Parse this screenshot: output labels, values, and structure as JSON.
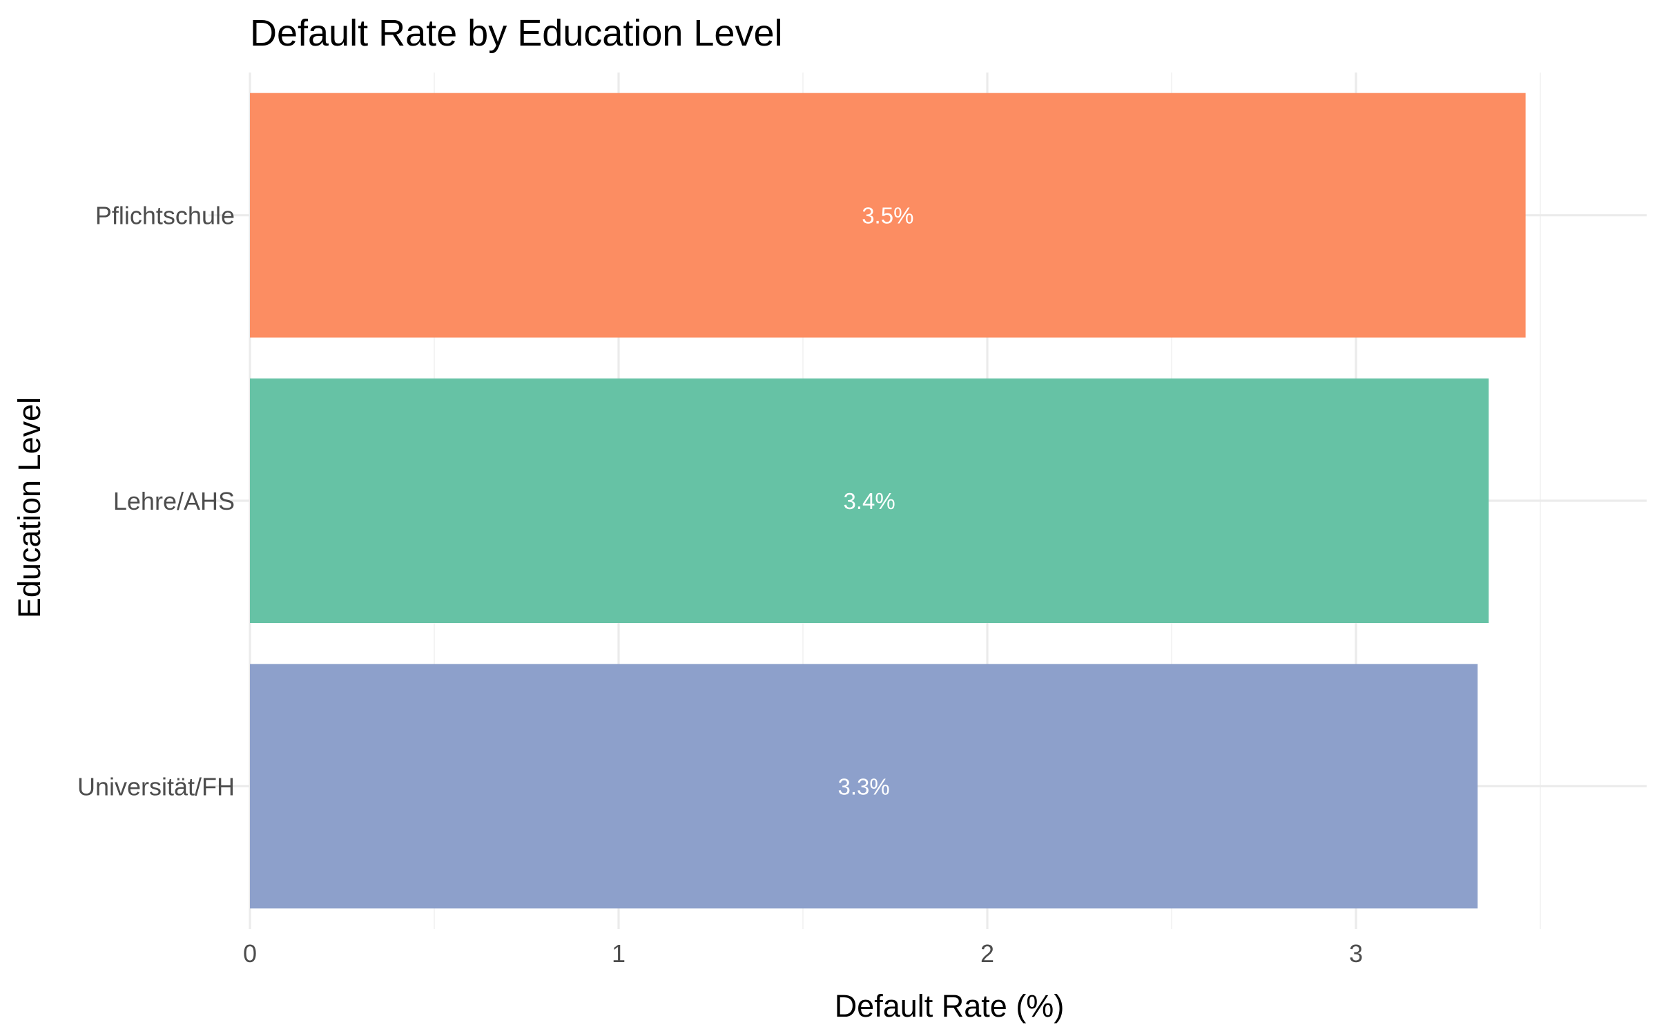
{
  "chart_data": {
    "type": "bar",
    "orientation": "horizontal",
    "title": "Default Rate by Education Level",
    "xlabel": "Default Rate (%)",
    "ylabel": "Education Level",
    "xlim": [
      0,
      3.5
    ],
    "x_ticks": [
      0,
      1,
      2,
      3
    ],
    "grid": true,
    "categories": [
      "Pflichtschule",
      "Lehre/AHS",
      "Universität/FH"
    ],
    "values": [
      3.46,
      3.36,
      3.33
    ],
    "data_labels": [
      "3.5%",
      "3.4%",
      "3.3%"
    ],
    "colors": [
      "#FC8D62",
      "#66C2A5",
      "#8DA0CB"
    ],
    "legend": "none"
  }
}
